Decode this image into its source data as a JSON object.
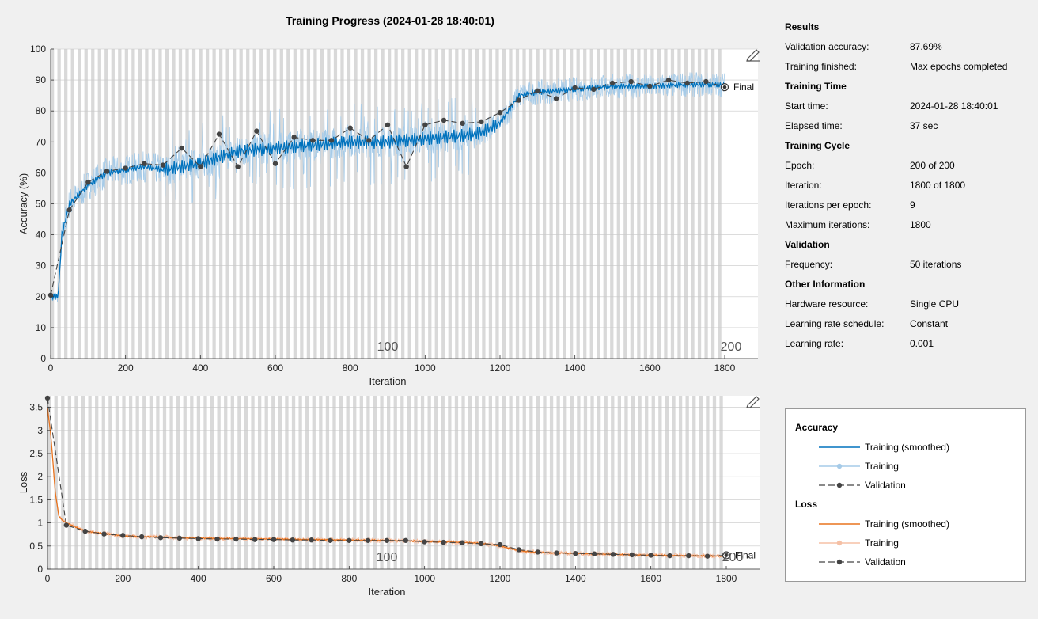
{
  "title": "Training Progress (2024-01-28 18:40:01)",
  "accuracy_plot": {
    "ylabel": "Accuracy (%)",
    "xlabel": "Iteration",
    "yticks": [
      "0",
      "10",
      "20",
      "30",
      "40",
      "50",
      "60",
      "70",
      "80",
      "90",
      "100"
    ],
    "xticks": [
      "0",
      "200",
      "400",
      "600",
      "800",
      "1000",
      "1200",
      "1400",
      "1600",
      "1800"
    ],
    "epoch_labels": [
      "100",
      "200"
    ],
    "final_label": "Final",
    "edit_icon": "edit-plot-icon"
  },
  "loss_plot": {
    "ylabel": "Loss",
    "xlabel": "Iteration",
    "yticks": [
      "0",
      "0.5",
      "1",
      "1.5",
      "2",
      "2.5",
      "3",
      "3.5"
    ],
    "xticks": [
      "0",
      "200",
      "400",
      "600",
      "800",
      "1000",
      "1200",
      "1400",
      "1600",
      "1800"
    ],
    "epoch_labels": [
      "100",
      "200"
    ],
    "final_label": "Final",
    "edit_icon": "edit-plot-icon"
  },
  "info": {
    "results_heading": "Results",
    "val_acc_label": "Validation accuracy:",
    "val_acc_value": "87.69%",
    "finished_label": "Training finished:",
    "finished_value": "Max epochs completed",
    "time_heading": "Training Time",
    "start_label": "Start time:",
    "start_value": "2024-01-28 18:40:01",
    "elapsed_label": "Elapsed time:",
    "elapsed_value": "37 sec",
    "cycle_heading": "Training Cycle",
    "epoch_label": "Epoch:",
    "epoch_value": "200 of 200",
    "iteration_label": "Iteration:",
    "iteration_value": "1800 of 1800",
    "ipe_label": "Iterations per epoch:",
    "ipe_value": "9",
    "maxiter_label": "Maximum iterations:",
    "maxiter_value": "1800",
    "validation_heading": "Validation",
    "freq_label": "Frequency:",
    "freq_value": "50 iterations",
    "other_heading": "Other Information",
    "hw_label": "Hardware resource:",
    "hw_value": "Single CPU",
    "lrs_label": "Learning rate schedule:",
    "lrs_value": "Constant",
    "lr_label": "Learning rate:",
    "lr_value": "0.001"
  },
  "legend": {
    "accuracy_heading": "Accuracy",
    "loss_heading": "Loss",
    "smoothed": "Training (smoothed)",
    "training": "Training",
    "validation": "Validation"
  },
  "colors": {
    "acc_smoothed": "#0072bd",
    "acc_training": "#a6cbe8",
    "loss_smoothed": "#e8731e",
    "loss_training": "#f5c0a5",
    "validation": "#444444",
    "epoch_band": "#d9d9d9"
  },
  "chart_data": [
    {
      "type": "line",
      "ylabel": "Accuracy (%)",
      "xlabel": "Iteration",
      "xlim": [
        0,
        1800
      ],
      "ylim": [
        0,
        100
      ],
      "series": [
        {
          "name": "Validation",
          "x": [
            0,
            50,
            100,
            150,
            200,
            250,
            300,
            350,
            400,
            450,
            500,
            550,
            600,
            650,
            700,
            750,
            800,
            850,
            900,
            950,
            1000,
            1050,
            1100,
            1150,
            1200,
            1250,
            1300,
            1350,
            1400,
            1450,
            1500,
            1550,
            1600,
            1650,
            1700,
            1750,
            1800
          ],
          "y": [
            20.5,
            48,
            57,
            60.5,
            61.5,
            63,
            62.5,
            68,
            62,
            72.5,
            62,
            73.5,
            63,
            71.5,
            70.5,
            70.5,
            74.5,
            70.5,
            75.5,
            62,
            75.5,
            77,
            76,
            76.5,
            79.5,
            83.5,
            86.5,
            84,
            87.5,
            87,
            89,
            89.5,
            88,
            90,
            89,
            89.5,
            87.7
          ]
        },
        {
          "name": "Training (smoothed)",
          "x": [
            0,
            20,
            30,
            50,
            100,
            150,
            200,
            250,
            300,
            400,
            500,
            600,
            700,
            800,
            900,
            1000,
            1100,
            1150,
            1200,
            1250,
            1300,
            1400,
            1500,
            1600,
            1700,
            1800
          ],
          "y": [
            20,
            20,
            40,
            50,
            56,
            60,
            61,
            62,
            61,
            63,
            67,
            68,
            69,
            70,
            70,
            71,
            72,
            73,
            76,
            85,
            86,
            87,
            88,
            88,
            88.5,
            88.5
          ]
        }
      ]
    },
    {
      "type": "line",
      "ylabel": "Loss",
      "xlabel": "Iteration",
      "xlim": [
        0,
        1800
      ],
      "ylim": [
        0,
        3.75
      ],
      "series": [
        {
          "name": "Validation",
          "x": [
            0,
            50,
            100,
            150,
            200,
            250,
            300,
            350,
            400,
            450,
            500,
            550,
            600,
            650,
            700,
            750,
            800,
            850,
            900,
            950,
            1000,
            1050,
            1100,
            1150,
            1200,
            1250,
            1300,
            1350,
            1400,
            1450,
            1500,
            1550,
            1600,
            1650,
            1700,
            1750,
            1800
          ],
          "y": [
            3.7,
            0.95,
            0.82,
            0.76,
            0.73,
            0.7,
            0.68,
            0.67,
            0.66,
            0.65,
            0.65,
            0.64,
            0.64,
            0.63,
            0.63,
            0.62,
            0.62,
            0.62,
            0.62,
            0.62,
            0.59,
            0.58,
            0.57,
            0.55,
            0.53,
            0.42,
            0.37,
            0.35,
            0.34,
            0.33,
            0.32,
            0.31,
            0.3,
            0.29,
            0.29,
            0.28,
            0.3
          ]
        },
        {
          "name": "Training (smoothed)",
          "x": [
            0,
            10,
            20,
            30,
            40,
            50,
            100,
            200,
            300,
            400,
            500,
            600,
            700,
            800,
            900,
            1000,
            1100,
            1150,
            1200,
            1250,
            1300,
            1400,
            1500,
            1600,
            1700,
            1800
          ],
          "y": [
            3.5,
            2.8,
            1.7,
            1.15,
            1.05,
            1.0,
            0.82,
            0.72,
            0.69,
            0.67,
            0.66,
            0.65,
            0.64,
            0.63,
            0.62,
            0.6,
            0.58,
            0.56,
            0.5,
            0.4,
            0.36,
            0.34,
            0.32,
            0.3,
            0.29,
            0.28
          ]
        }
      ]
    }
  ]
}
